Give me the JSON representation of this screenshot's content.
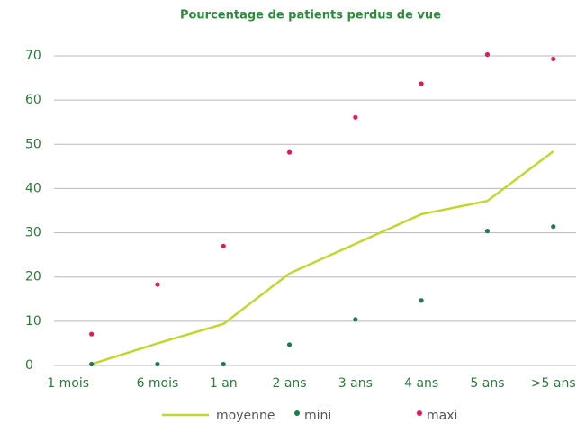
{
  "chart_data": {
    "type": "line",
    "title": "Pourcentage de patients perdus de vue",
    "categories": [
      "1 mois",
      "6 mois",
      "1 an",
      "2 ans",
      "3 ans",
      "4 ans",
      "5 ans",
      ">5 ans"
    ],
    "series": [
      {
        "name": "moyenne",
        "color": "#c3d62f",
        "mode": "line",
        "values": [
          0.3,
          5,
          9.4,
          20.8,
          27.5,
          34.2,
          37.2,
          48.4
        ]
      },
      {
        "name": "mini",
        "color": "#1f7c4c",
        "mode": "markers",
        "values": [
          0.3,
          0.3,
          0.3,
          4.7,
          10.4,
          14.7,
          30.4,
          31.4
        ]
      },
      {
        "name": "maxi",
        "color": "#e2185f",
        "mode": "markers",
        "values": [
          7.1,
          18.3,
          27,
          48.2,
          56.1,
          63.7,
          70.3,
          69.3
        ]
      }
    ],
    "ylim": [
      0,
      70
    ],
    "yticks": [
      0,
      10,
      20,
      30,
      40,
      50,
      60,
      70
    ],
    "grid": true
  }
}
